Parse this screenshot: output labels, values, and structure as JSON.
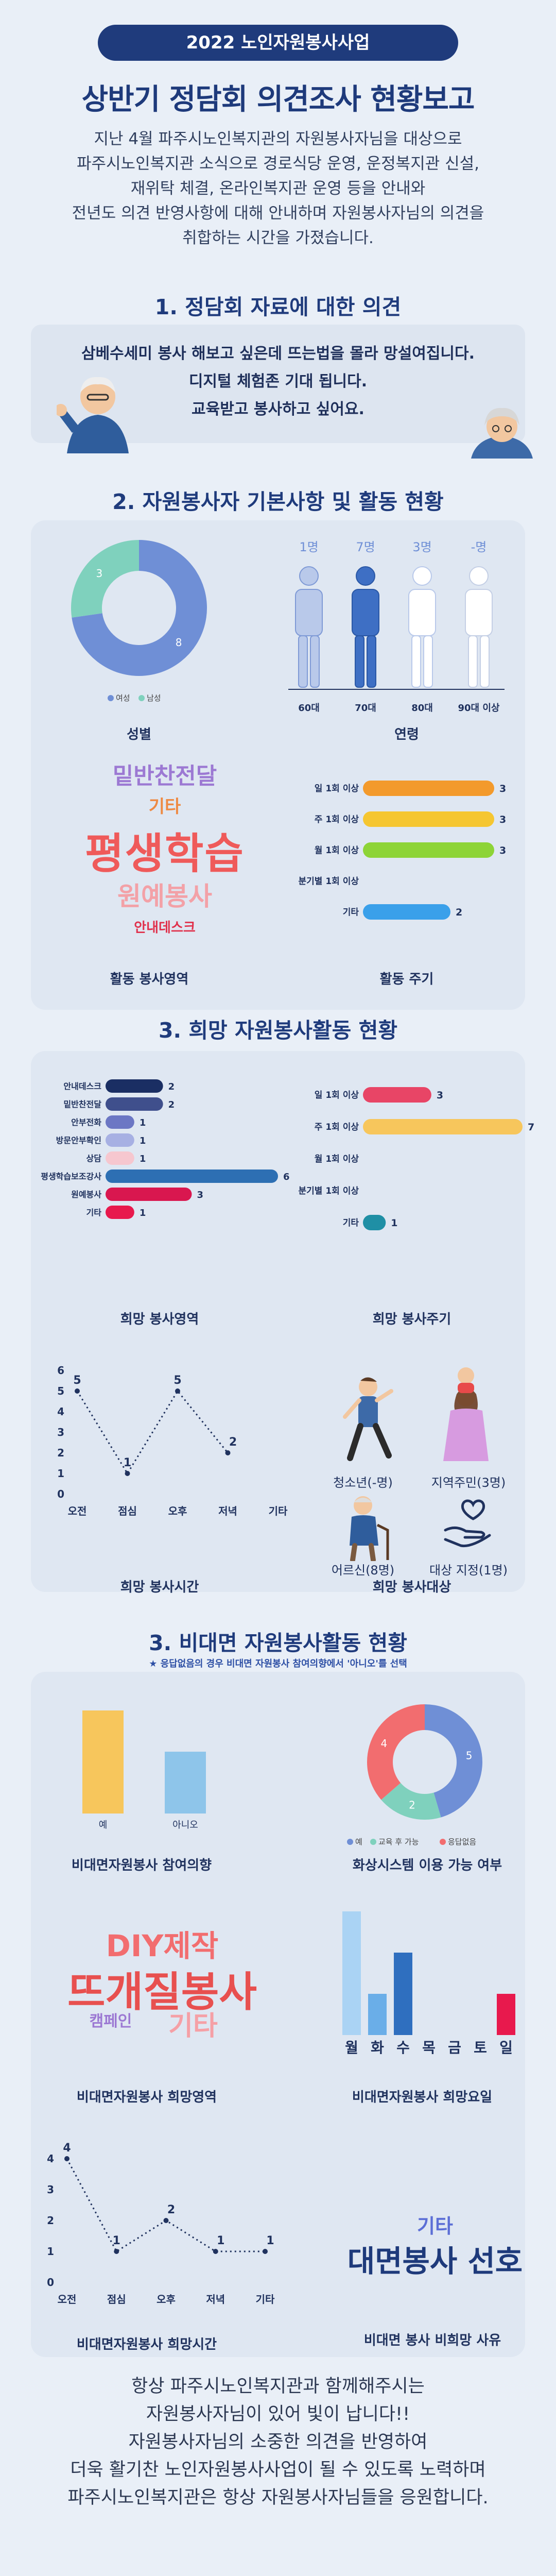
{
  "header": {
    "banner": "2022 노인자원봉사사업",
    "title": "상반기 정담회 의견조사 현황보고",
    "intro": [
      "지난 4월 파주시노인복지관의 자원봉사자님을 대상으로",
      "파주시노인복지관 소식으로 경로식당 운영, 운정복지관 신설,",
      "재위탁 체결, 온라인복지관 운영 등을 안내와",
      "전년도 의견 반영사항에 대해 안내하며 자원봉사자님의 의견을",
      "취합하는 시간을 가졌습니다."
    ]
  },
  "section1": {
    "title": "1. 정담회 자료에 대한 의견",
    "lines": [
      "삼베수세미 봉사 해보고 싶은데 뜨는법을 몰라 망설여집니다.",
      "디지털 체험존 기대 됩니다.",
      "교육받고 봉사하고 싶어요."
    ]
  },
  "section2": {
    "title": "2. 자원봉사자 기본사항 및 활동 현황",
    "gender": {
      "caption": "성별",
      "legend": [
        "여성",
        "남성"
      ],
      "colors": [
        "#6f8fd6",
        "#7fd1bd"
      ],
      "chart_data": {
        "type": "pie",
        "categories": [
          "여성",
          "남성"
        ],
        "values": [
          8,
          3
        ]
      }
    },
    "age": {
      "caption": "연령",
      "counts": [
        "1명",
        "7명",
        "3명",
        "-명"
      ],
      "labels": [
        "60대",
        "70대",
        "80대",
        "90대 이상"
      ],
      "chart_data": {
        "type": "bar",
        "categories": [
          "60대",
          "70대",
          "80대",
          "90대 이상"
        ],
        "values": [
          1,
          7,
          3,
          0
        ]
      }
    },
    "field": {
      "caption": "활동 봉사영역",
      "words": [
        "밑반찬전달",
        "기타",
        "평생학습",
        "원예봉사",
        "안내데스크"
      ],
      "colors": [
        "#9c79d3",
        "#ee8a43",
        "#ef5a5a",
        "#f3a1a7",
        "#e0314c"
      ]
    },
    "cycle": {
      "caption": "활동 주기",
      "colors": [
        "#f39a2c",
        "#f5c631",
        "#8dd437",
        "#9c79d3",
        "#3aa0ea"
      ],
      "chart_data": {
        "type": "bar",
        "categories": [
          "일 1회 이상",
          "주 1회 이상",
          "월 1회 이상",
          "분기별 1회 이상",
          "기타"
        ],
        "values": [
          3,
          3,
          3,
          0,
          2
        ],
        "xlim": [
          0,
          3
        ]
      }
    }
  },
  "section3": {
    "title": "3. 희망 자원봉사활동 현황",
    "field": {
      "caption": "희망 봉사영역",
      "colors": [
        "#1a2e63",
        "#3f4f8c",
        "#6c77c4",
        "#a7b0e3",
        "#f6c7cf",
        "#2d6fb3",
        "#d9174f",
        "#e8194d"
      ],
      "chart_data": {
        "type": "bar",
        "categories": [
          "안내데스크",
          "밑반찬전달",
          "안부전화",
          "방문안부확인",
          "상담",
          "평생학습보조강사",
          "원예봉사",
          "기타"
        ],
        "values": [
          2,
          2,
          1,
          1,
          1,
          6,
          3,
          1
        ],
        "xlim": [
          0,
          6
        ]
      }
    },
    "cycle": {
      "caption": "희망 봉사주기",
      "colors": [
        "#e84566",
        "#f7c65c",
        "#888888",
        "#888888",
        "#1f8fa5"
      ],
      "chart_data": {
        "type": "bar",
        "categories": [
          "일 1회 이상",
          "주 1회 이상",
          "월 1회 이상",
          "분기별 1회 이상",
          "기타"
        ],
        "values": [
          3,
          7,
          0,
          0,
          1
        ],
        "xlim": [
          0,
          7
        ]
      }
    },
    "time": {
      "caption": "희망 봉사시간",
      "chart_data": {
        "type": "line",
        "categories": [
          "오전",
          "점심",
          "오후",
          "저녁",
          "기타"
        ],
        "values": [
          5,
          1,
          5,
          2,
          null
        ],
        "ylim": [
          0,
          6
        ]
      }
    },
    "target": {
      "caption": "희망 봉사대상",
      "labels": [
        "청소년(-명)",
        "지역주민(3명)",
        "어르신(8명)",
        "대상 지정(1명)"
      ]
    }
  },
  "section4": {
    "title": "3. 비대면 자원봉사활동 현황",
    "note": "★ 응답없음의 경우 비대면 자원봉사 참여의향에서 '아니오'를 선택",
    "intent": {
      "caption": "비대면자원봉사 참여의향",
      "colors": [
        "#f7c65c",
        "#8ec5ea"
      ],
      "chart_data": {
        "type": "bar",
        "categories": [
          "예",
          "아니오"
        ],
        "values": [
          5,
          3
        ]
      }
    },
    "video": {
      "caption": "화상시스템 이용 가능 여부",
      "legend": [
        "예",
        "교육 후 가능",
        "응답없음"
      ],
      "colors": [
        "#6f8fd6",
        "#7fd1bd",
        "#f26d6f"
      ],
      "chart_data": {
        "type": "pie",
        "categories": [
          "예",
          "교육 후 가능",
          "응답없음"
        ],
        "values": [
          5,
          2,
          4
        ]
      }
    },
    "field": {
      "caption": "비대면자원봉사 희망영역",
      "words": [
        "DIY제작",
        "뜨개질봉사",
        "캠페인",
        "기타"
      ],
      "colors": [
        "#f26d6f",
        "#e8504f",
        "#9c79d3",
        "#f5a0a6"
      ]
    },
    "day": {
      "caption": "비대면자원봉사 희망요일",
      "colors": [
        "#aad3f4",
        "#6aaee8",
        "#2f6fbf",
        "#e8194d"
      ],
      "chart_data": {
        "type": "bar",
        "categories": [
          "월",
          "화",
          "수",
          "목",
          "금",
          "토",
          "일"
        ],
        "values": [
          6,
          2,
          4,
          0,
          0,
          0,
          2
        ]
      }
    },
    "time": {
      "caption": "비대면자원봉사 희망시간",
      "chart_data": {
        "type": "line",
        "categories": [
          "오전",
          "점심",
          "오후",
          "저녁",
          "기타"
        ],
        "values": [
          4,
          1,
          2,
          1,
          1
        ],
        "ylim": [
          0,
          4
        ]
      }
    },
    "reason": {
      "caption": "비대면 봉사 비희망 사유",
      "words": [
        "기타",
        "대면봉사 선호"
      ]
    }
  },
  "footer": {
    "lines": [
      "항상 파주시노인복지관과 함께해주시는",
      "자원봉사자님이 있어 빛이 납니다!!",
      "자원봉사자님의 소중한 의견을 반영하여",
      "더욱 활기찬 노인자원봉사사업이 될 수 있도록 노력하며",
      "파주시노인복지관은 항상 자원봉사자님들을 응원합니다."
    ]
  }
}
